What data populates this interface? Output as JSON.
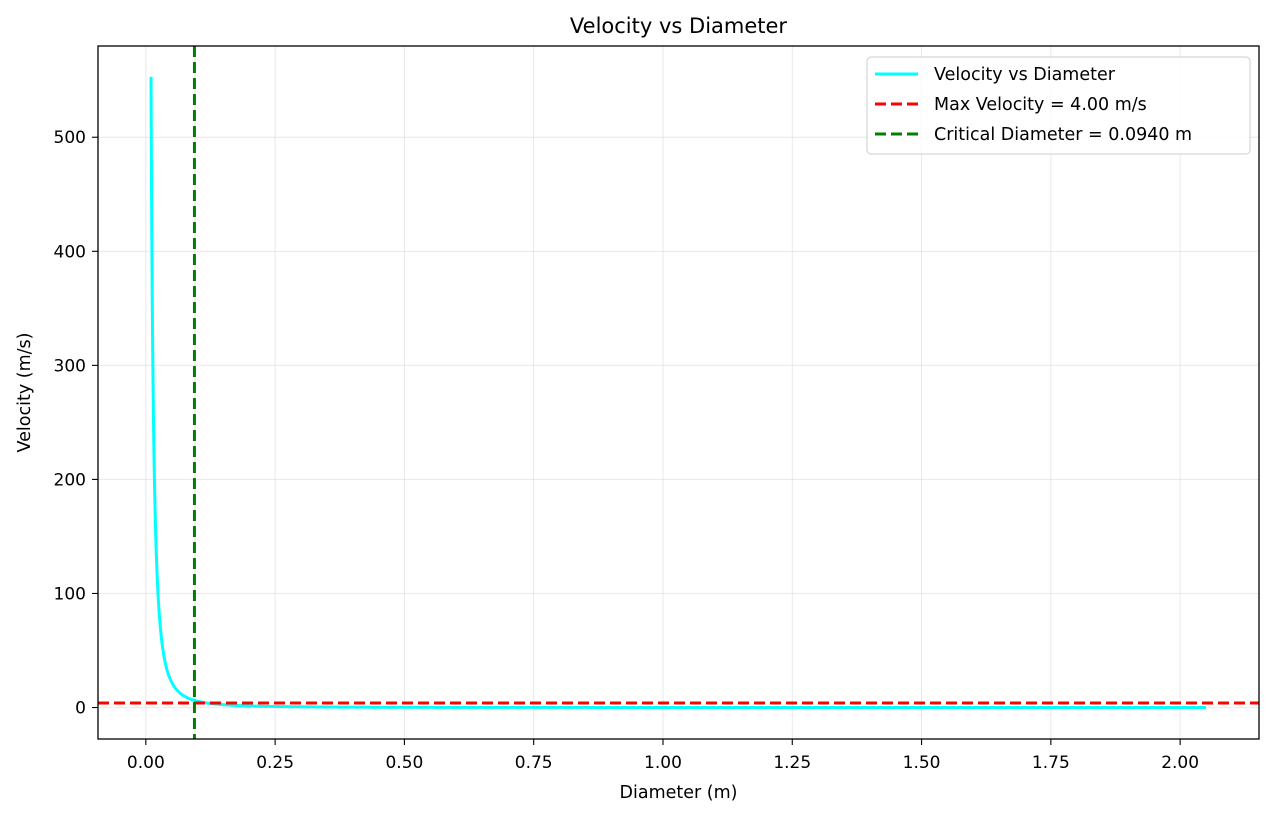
{
  "chart_data": {
    "type": "line",
    "title": "Velocity vs Diameter",
    "xlabel": "Diameter (m)",
    "ylabel": "Velocity (m/s)",
    "xlim": [
      -0.0925,
      2.1525
    ],
    "ylim": [
      -27.6,
      580.0
    ],
    "x_ticks": [
      0.0,
      0.25,
      0.5,
      0.75,
      1.0,
      1.25,
      1.5,
      1.75,
      2.0
    ],
    "x_tick_labels": [
      "0.00",
      "0.25",
      "0.50",
      "0.75",
      "1.00",
      "1.25",
      "1.50",
      "1.75",
      "2.00"
    ],
    "y_ticks": [
      0,
      100,
      200,
      300,
      400,
      500
    ],
    "y_tick_labels": [
      "0",
      "100",
      "200",
      "300",
      "400",
      "500"
    ],
    "grid": true,
    "legend_position": "top-right",
    "series": [
      {
        "name": "Velocity vs Diameter",
        "color": "#00ffff",
        "style": "solid",
        "model": "v = 0.0553 / d^2",
        "x_range": [
          0.01,
          2.05
        ],
        "points": [
          [
            0.01,
            553.0
          ],
          [
            0.012,
            384.0
          ],
          [
            0.015,
            245.8
          ],
          [
            0.02,
            138.3
          ],
          [
            0.025,
            88.5
          ],
          [
            0.03,
            61.4
          ],
          [
            0.04,
            34.6
          ],
          [
            0.05,
            22.1
          ],
          [
            0.06,
            15.4
          ],
          [
            0.08,
            8.64
          ],
          [
            0.094,
            6.26
          ],
          [
            0.1,
            5.53
          ],
          [
            0.15,
            2.46
          ],
          [
            0.2,
            1.38
          ],
          [
            0.3,
            0.61
          ],
          [
            0.5,
            0.22
          ],
          [
            1.0,
            0.055
          ],
          [
            1.5,
            0.025
          ],
          [
            2.05,
            0.013
          ]
        ]
      },
      {
        "name": "Max Velocity = 4.00 m/s",
        "color": "#ff0000",
        "style": "dashed",
        "orientation": "horizontal",
        "value": 4.0
      },
      {
        "name": "Critical Diameter = 0.0940 m",
        "color": "#008000",
        "style": "dashed",
        "orientation": "vertical",
        "value": 0.094
      }
    ]
  }
}
